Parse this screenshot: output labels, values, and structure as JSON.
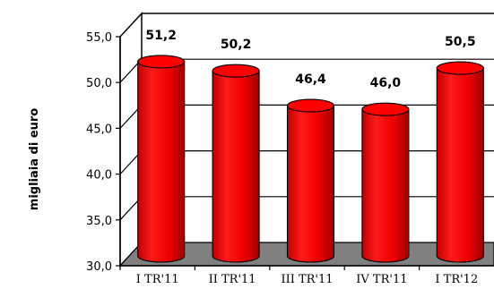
{
  "chart_data": {
    "type": "bar",
    "title": "",
    "xlabel": "",
    "ylabel": "migliaia di euro",
    "categories": [
      "I TR'11",
      "II TR'11",
      "III TR'11",
      "IV TR'11",
      "I TR'12"
    ],
    "values": [
      51.2,
      50.2,
      46.4,
      46.0,
      50.5
    ],
    "data_labels": [
      "51,2",
      "50,2",
      "46,4",
      "46,0",
      "50,5"
    ],
    "ylim": [
      30,
      55
    ],
    "yticks": [
      "30,0",
      "35,0",
      "40,0",
      "45,0",
      "50,0",
      "55,0"
    ],
    "grid": true,
    "bar_shape": "cylinder",
    "colors": {
      "bar": "#ff0000",
      "bar_dark": "#b80000",
      "floor": "#808080"
    }
  }
}
